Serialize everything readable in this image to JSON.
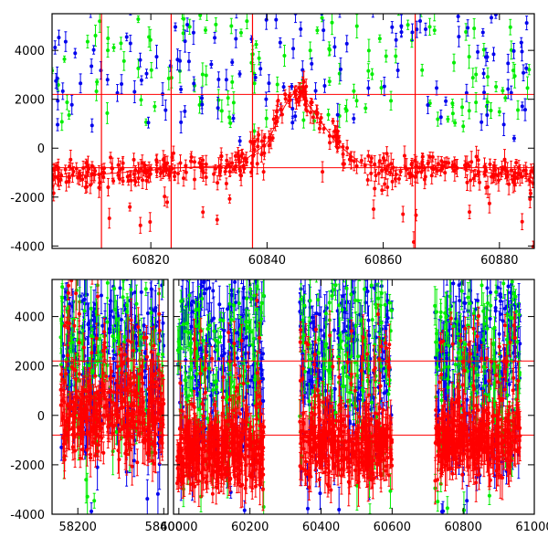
{
  "chart_data": [
    {
      "type": "scatter",
      "title": "",
      "xlabel": "",
      "ylabel": "",
      "xlim": [
        60803,
        60886
      ],
      "ylim": [
        -4100,
        5500
      ],
      "grid": false,
      "xticks": [
        "60820",
        "60840",
        "60860",
        "60880"
      ],
      "yticks": [
        "-4000",
        "-2000",
        "0",
        "2000",
        "4000"
      ],
      "reference_lines_y": [
        2200,
        -800
      ],
      "reference_lines_x": [
        60811.5,
        60823.5,
        60837.5,
        60865.5
      ],
      "colors": {
        "red": "#ff0000",
        "green": "#00ee00",
        "blue": "#0000ee"
      },
      "series": [
        {
          "color": "red",
          "baseline": -800,
          "scatter": 300,
          "trend": [
            [
              60803,
              -1200
            ],
            [
              60815,
              -1000
            ],
            [
              60825,
              -800
            ],
            [
              60835,
              -700
            ],
            [
              60840,
              200
            ],
            [
              60843,
              1700
            ],
            [
              60845,
              2400
            ],
            [
              60848,
              1500
            ],
            [
              60852,
              200
            ],
            [
              60856,
              -600
            ],
            [
              60862,
              -900
            ],
            [
              60870,
              -700
            ],
            [
              60878,
              -1000
            ],
            [
              60886,
              -1200
            ]
          ]
        },
        {
          "color": "green",
          "sparse_level": [
            1000,
            5000
          ]
        },
        {
          "color": "blue",
          "sparse_level": [
            1500,
            5000
          ]
        }
      ]
    },
    {
      "type": "scatter",
      "title": "",
      "xlabel": "",
      "ylabel": "",
      "segments": [
        {
          "xlim": [
            58140,
            58410
          ],
          "xticks": [
            "58200",
            "58400"
          ]
        },
        {
          "xlim": [
            59985,
            61000
          ],
          "xticks": [
            "60000",
            "60200",
            "60400",
            "60600",
            "60800",
            "61000"
          ]
        }
      ],
      "ylim": [
        -4000,
        5500
      ],
      "grid": false,
      "yticks": [
        "-4000",
        "-2000",
        "0",
        "2000",
        "4000"
      ],
      "reference_lines_y": [
        2200,
        -800
      ],
      "clusters": [
        {
          "x": [
            58160,
            58400
          ],
          "red_center": 0,
          "red_spread": 900
        },
        {
          "x": [
            59995,
            60240
          ],
          "red_center": -1400,
          "red_spread": 700
        },
        {
          "x": [
            60340,
            60600
          ],
          "red_center": -1200,
          "red_spread": 700
        },
        {
          "x": [
            60720,
            60960
          ],
          "red_center": -1000,
          "red_spread": 700
        }
      ],
      "series": [
        {
          "color": "red"
        },
        {
          "color": "green"
        },
        {
          "color": "blue"
        }
      ]
    }
  ]
}
